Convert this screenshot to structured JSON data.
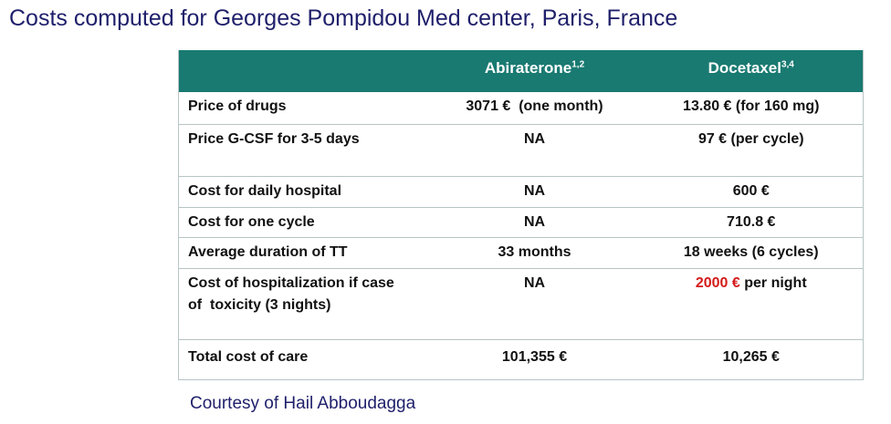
{
  "title": "Costs computed for Georges Pompidou Med center, Paris, France",
  "table": {
    "header": [
      {
        "text": "Abiraterone",
        "sup": "1,2"
      },
      {
        "text": "Docetaxel",
        "sup": "3,4"
      }
    ],
    "rows": [
      [
        "Price of drugs",
        "3071 €  (one month)",
        "13.80 € (for 160 mg)"
      ],
      [
        "Price G-CSF for 3-5 days",
        "NA",
        "97 € (per cycle)"
      ],
      [
        "Cost for daily hospital",
        "NA",
        "600 €"
      ],
      [
        "Cost for one cycle",
        "NA",
        "710.8 €"
      ],
      [
        "Average duration of TT",
        "33 months",
        "18 weeks (6 cycles)"
      ],
      [
        [
          "Cost of hospitalization if case",
          "of  toxicity (3 nights)"
        ],
        "NA",
        {
          "highlight": "2000 €",
          "text": "per night"
        }
      ],
      [
        "Total cost of care",
        "101,355 €",
        "10,265 €"
      ]
    ]
  },
  "footer": "Courtesy of Hail Abboudagga"
}
